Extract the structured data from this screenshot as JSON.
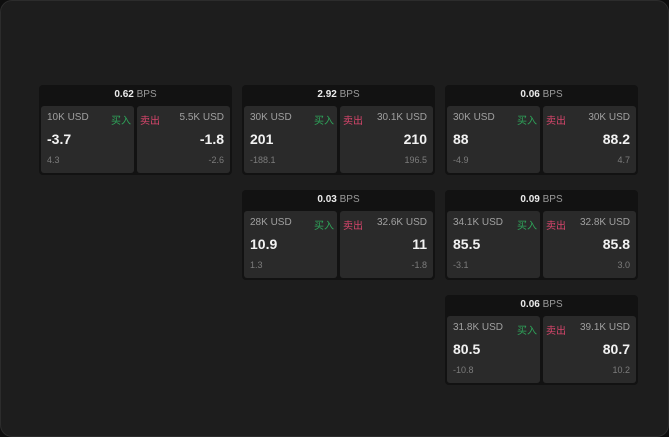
{
  "unit": "BPS",
  "buy_label": "买入",
  "sell_label": "卖出",
  "colors": {
    "buy": "#2ea55a",
    "sell": "#d6456b"
  },
  "widgets": [
    {
      "spread": "0.62",
      "buy": {
        "size": "10K USD",
        "price": "-3.7",
        "change": "4.3"
      },
      "sell": {
        "size": "5.5K USD",
        "price": "-1.8",
        "change": "-2.6"
      }
    },
    {
      "spread": "2.92",
      "buy": {
        "size": "30K USD",
        "price": "201",
        "change": "-188.1"
      },
      "sell": {
        "size": "30.1K USD",
        "price": "210",
        "change": "196.5"
      }
    },
    {
      "spread": "0.06",
      "buy": {
        "size": "30K USD",
        "price": "88",
        "change": "-4.9"
      },
      "sell": {
        "size": "30K USD",
        "price": "88.2",
        "change": "4.7"
      }
    },
    {
      "spread": "0.03",
      "buy": {
        "size": "28K USD",
        "price": "10.9",
        "change": "1.3"
      },
      "sell": {
        "size": "32.6K USD",
        "price": "11",
        "change": "-1.8"
      }
    },
    {
      "spread": "0.09",
      "buy": {
        "size": "34.1K USD",
        "price": "85.5",
        "change": "-3.1"
      },
      "sell": {
        "size": "32.8K USD",
        "price": "85.8",
        "change": "3.0"
      }
    },
    {
      "spread": "0.06",
      "buy": {
        "size": "31.8K USD",
        "price": "80.5",
        "change": "-10.8"
      },
      "sell": {
        "size": "39.1K USD",
        "price": "80.7",
        "change": "10.2"
      }
    }
  ]
}
